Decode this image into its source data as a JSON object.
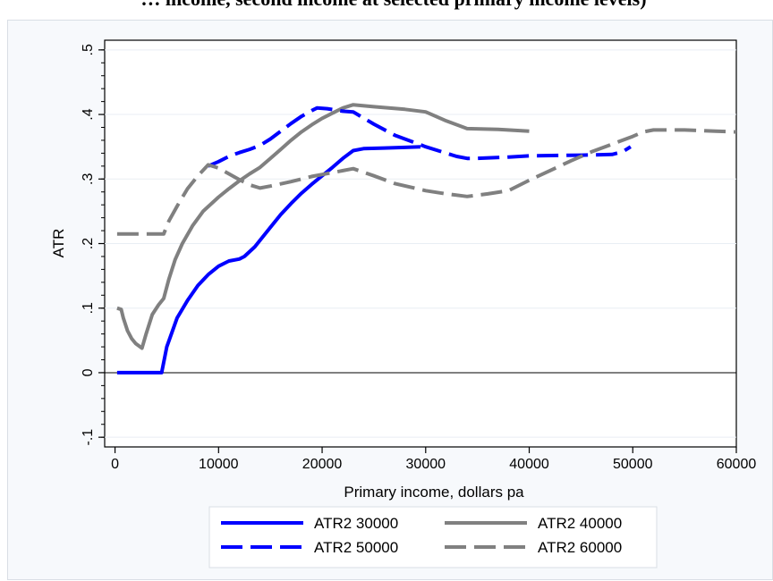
{
  "page": {
    "title": "… income, second income at selected primary income levels)"
  },
  "chart_data": {
    "type": "line",
    "xlabel": "Primary income, dollars pa",
    "ylabel": "ATR",
    "xlim": [
      -1000,
      60000
    ],
    "ylim": [
      -0.115,
      0.515
    ],
    "x_ticks": [
      {
        "value": 0,
        "label": "0"
      },
      {
        "value": 10000,
        "label": "10000"
      },
      {
        "value": 20000,
        "label": "20000"
      },
      {
        "value": 30000,
        "label": "30000"
      },
      {
        "value": 40000,
        "label": "40000"
      },
      {
        "value": 50000,
        "label": "50000"
      },
      {
        "value": 60000,
        "label": "60000"
      }
    ],
    "y_ticks": [
      {
        "value": -0.1,
        "label": "-.1"
      },
      {
        "value": 0,
        "label": "0"
      },
      {
        "value": 0.1,
        "label": ".1"
      },
      {
        "value": 0.2,
        "label": ".2"
      },
      {
        "value": 0.3,
        "label": ".3"
      },
      {
        "value": 0.4,
        "label": ".4"
      },
      {
        "value": 0.5,
        "label": ".5"
      }
    ],
    "y_minor_step": 0.02,
    "grid": "horizontal",
    "legend_position": "bottom",
    "series": [
      {
        "name": "ATR2 30000",
        "color": "#0000ff",
        "dash": "solid",
        "points": [
          [
            200,
            0
          ],
          [
            4500,
            0
          ],
          [
            5000,
            0.04
          ],
          [
            6000,
            0.085
          ],
          [
            7000,
            0.112
          ],
          [
            8000,
            0.135
          ],
          [
            9000,
            0.152
          ],
          [
            10000,
            0.165
          ],
          [
            11000,
            0.173
          ],
          [
            12000,
            0.176
          ],
          [
            12500,
            0.18
          ],
          [
            13500,
            0.195
          ],
          [
            14000,
            0.205
          ],
          [
            15000,
            0.225
          ],
          [
            16000,
            0.245
          ],
          [
            17000,
            0.262
          ],
          [
            18000,
            0.278
          ],
          [
            19000,
            0.292
          ],
          [
            20000,
            0.305
          ],
          [
            21000,
            0.318
          ],
          [
            22000,
            0.332
          ],
          [
            23000,
            0.344
          ],
          [
            24000,
            0.347
          ],
          [
            26000,
            0.348
          ],
          [
            28000,
            0.349
          ],
          [
            29500,
            0.35
          ]
        ]
      },
      {
        "name": "ATR2 40000",
        "color": "#808080",
        "dash": "solid",
        "points": [
          [
            200,
            0.1
          ],
          [
            600,
            0.098
          ],
          [
            800,
            0.085
          ],
          [
            1200,
            0.065
          ],
          [
            1600,
            0.053
          ],
          [
            2000,
            0.045
          ],
          [
            2600,
            0.038
          ],
          [
            3000,
            0.06
          ],
          [
            3600,
            0.09
          ],
          [
            4200,
            0.105
          ],
          [
            4700,
            0.115
          ],
          [
            5200,
            0.145
          ],
          [
            5800,
            0.175
          ],
          [
            6500,
            0.2
          ],
          [
            7500,
            0.228
          ],
          [
            8500,
            0.25
          ],
          [
            10000,
            0.272
          ],
          [
            11000,
            0.285
          ],
          [
            12000,
            0.297
          ],
          [
            13000,
            0.308
          ],
          [
            14000,
            0.318
          ],
          [
            15000,
            0.332
          ],
          [
            16000,
            0.346
          ],
          [
            17000,
            0.36
          ],
          [
            18000,
            0.373
          ],
          [
            19000,
            0.384
          ],
          [
            20000,
            0.394
          ],
          [
            21000,
            0.402
          ],
          [
            22000,
            0.41
          ],
          [
            23000,
            0.415
          ],
          [
            25000,
            0.412
          ],
          [
            28000,
            0.408
          ],
          [
            30000,
            0.404
          ],
          [
            32000,
            0.39
          ],
          [
            34000,
            0.378
          ],
          [
            37000,
            0.377
          ],
          [
            40000,
            0.374
          ]
        ]
      },
      {
        "name": "ATR2 50000",
        "color": "#0000ff",
        "dash": "long",
        "points": [
          [
            9000,
            0.32
          ],
          [
            10000,
            0.327
          ],
          [
            11000,
            0.335
          ],
          [
            12000,
            0.341
          ],
          [
            13000,
            0.346
          ],
          [
            14000,
            0.352
          ],
          [
            15000,
            0.362
          ],
          [
            16000,
            0.374
          ],
          [
            17000,
            0.386
          ],
          [
            18000,
            0.397
          ],
          [
            19000,
            0.406
          ],
          [
            19500,
            0.41
          ],
          [
            20500,
            0.409
          ],
          [
            22000,
            0.405
          ],
          [
            23000,
            0.404
          ],
          [
            25000,
            0.385
          ],
          [
            27000,
            0.368
          ],
          [
            30000,
            0.35
          ],
          [
            32000,
            0.34
          ],
          [
            33000,
            0.335
          ],
          [
            34000,
            0.332
          ],
          [
            35000,
            0.332
          ],
          [
            38000,
            0.334
          ],
          [
            40000,
            0.336
          ],
          [
            45000,
            0.337
          ],
          [
            48000,
            0.338
          ],
          [
            49000,
            0.342
          ],
          [
            49800,
            0.35
          ]
        ]
      },
      {
        "name": "ATR2 60000",
        "color": "#808080",
        "dash": "long",
        "points": [
          [
            200,
            0.215
          ],
          [
            4700,
            0.215
          ],
          [
            5200,
            0.235
          ],
          [
            6000,
            0.258
          ],
          [
            7000,
            0.285
          ],
          [
            8000,
            0.305
          ],
          [
            9000,
            0.322
          ],
          [
            10000,
            0.317
          ],
          [
            11000,
            0.308
          ],
          [
            12000,
            0.299
          ],
          [
            13000,
            0.291
          ],
          [
            14000,
            0.286
          ],
          [
            15000,
            0.289
          ],
          [
            17000,
            0.296
          ],
          [
            19000,
            0.304
          ],
          [
            21000,
            0.31
          ],
          [
            23000,
            0.316
          ],
          [
            25000,
            0.305
          ],
          [
            27000,
            0.293
          ],
          [
            30000,
            0.282
          ],
          [
            32000,
            0.277
          ],
          [
            34000,
            0.273
          ],
          [
            36000,
            0.277
          ],
          [
            38000,
            0.282
          ],
          [
            40000,
            0.298
          ],
          [
            42000,
            0.313
          ],
          [
            44000,
            0.328
          ],
          [
            46000,
            0.342
          ],
          [
            48000,
            0.354
          ],
          [
            50000,
            0.366
          ],
          [
            51000,
            0.373
          ],
          [
            52000,
            0.376
          ],
          [
            55000,
            0.376
          ],
          [
            58000,
            0.374
          ],
          [
            60000,
            0.373
          ]
        ]
      }
    ]
  }
}
